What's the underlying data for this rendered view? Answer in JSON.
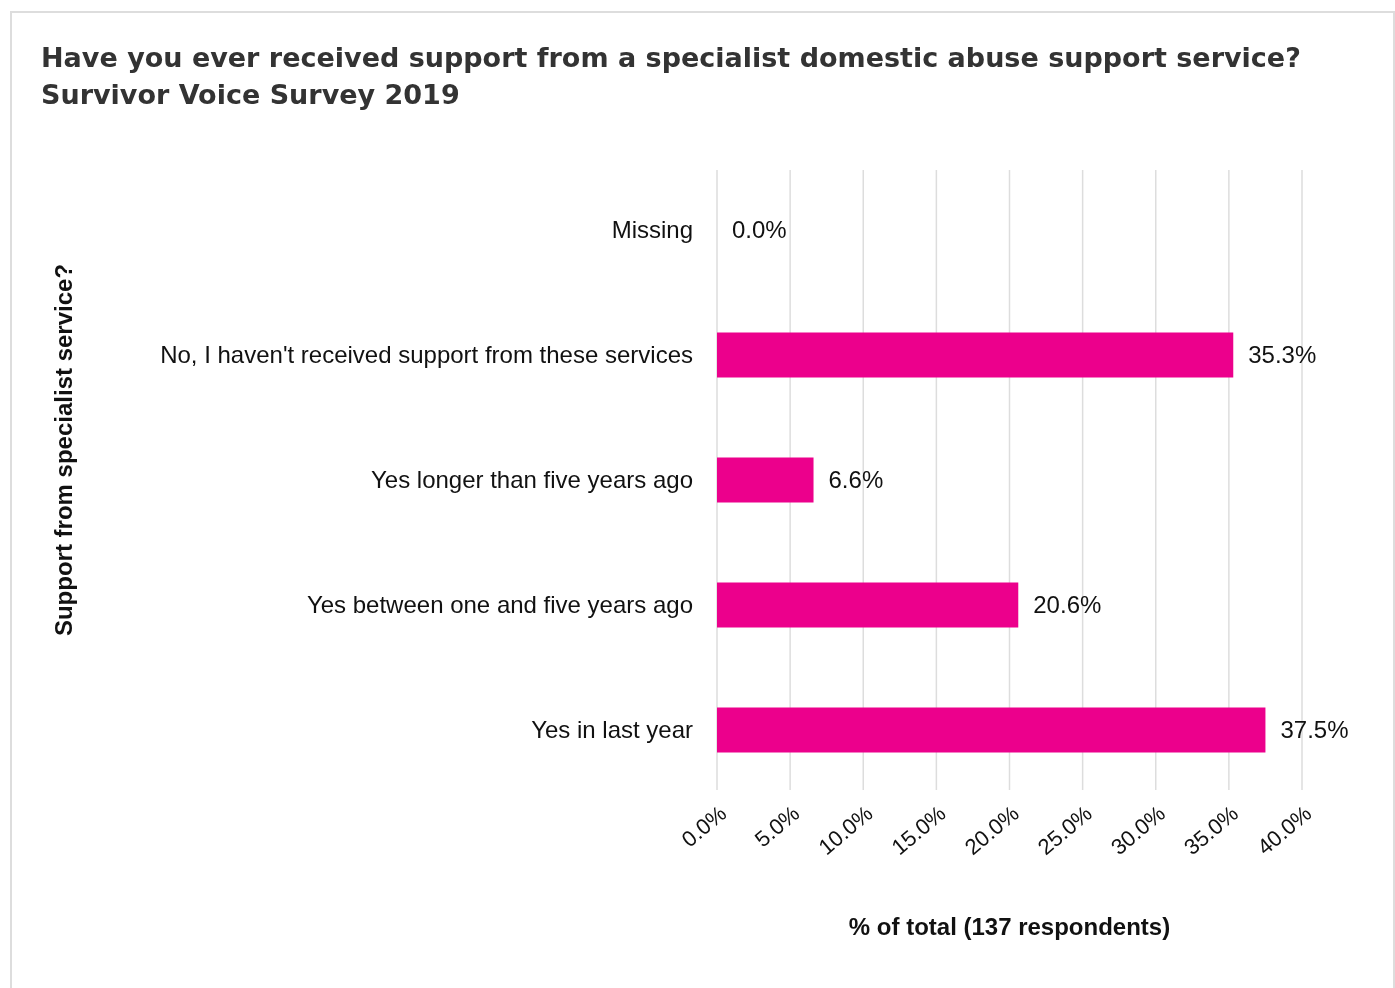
{
  "chart_data": {
    "type": "bar",
    "orientation": "horizontal",
    "title": "Have you ever received support from a specialist domestic abuse support service?",
    "subtitle": "Survivor Voice Survey 2019",
    "ylabel": "Support from specialist service?",
    "xlabel": "% of total (137 respondents)",
    "categories": [
      "Missing",
      "No, I haven't received support from these services",
      "Yes longer than five years ago",
      "Yes between one and five years ago",
      "Yes in last year"
    ],
    "values": [
      0,
      35.3,
      6.6,
      20.6,
      37.5
    ],
    "value_labels": [
      "0.0%",
      "35.3%",
      "6.6%",
      "20.6%",
      "37.5%"
    ],
    "color": "#ec008c",
    "xlim": [
      0,
      40
    ],
    "xticks": [
      {
        "value": 0,
        "label": "0.0%"
      },
      {
        "value": 5,
        "label": "5.0%"
      },
      {
        "value": 10,
        "label": "10.0%"
      },
      {
        "value": 15,
        "label": "15.0%"
      },
      {
        "value": 20,
        "label": "20.0%"
      },
      {
        "value": 25,
        "label": "25.0%"
      },
      {
        "value": 30,
        "label": "30.0%"
      },
      {
        "value": 35,
        "label": "35.0%"
      },
      {
        "value": 40,
        "label": "40.0%"
      }
    ],
    "grid": "x"
  }
}
